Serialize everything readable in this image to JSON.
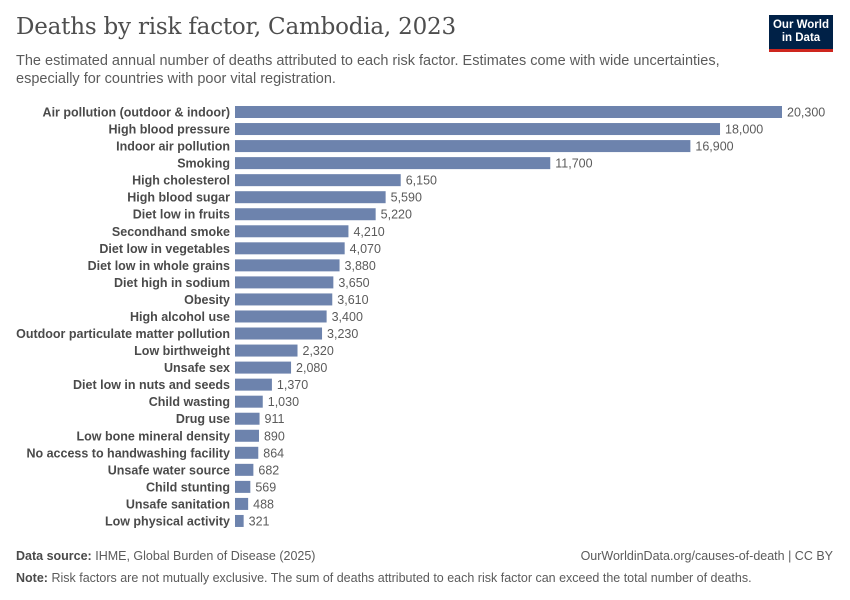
{
  "header": {
    "title": "Deaths by risk factor, Cambodia, 2023",
    "subtitle": "The estimated annual number of deaths attributed to each risk factor. Estimates come with wide uncertainties, especially for countries with poor vital registration."
  },
  "logo": {
    "line1": "Our World",
    "line2": "in Data"
  },
  "footer": {
    "source_label": "Data source:",
    "source_text": "IHME, Global Burden of Disease (2025)",
    "url_text": "OurWorldinData.org/causes-of-death | CC BY",
    "note_label": "Note:",
    "note_text": "Risk factors are not mutually exclusive. The sum of deaths attributed to each risk factor can exceed the total number of deaths."
  },
  "colors": {
    "bar": "#6d83ad",
    "logo_bg": "#002147",
    "logo_accent": "#ce261e"
  },
  "chart_data": {
    "type": "bar",
    "orientation": "horizontal",
    "title": "Deaths by risk factor, Cambodia, 2023",
    "xlabel": "",
    "ylabel": "",
    "xlim": [
      0,
      20300
    ],
    "categories": [
      "Air pollution (outdoor & indoor)",
      "High blood pressure",
      "Indoor air pollution",
      "Smoking",
      "High cholesterol",
      "High blood sugar",
      "Diet low in fruits",
      "Secondhand smoke",
      "Diet low in vegetables",
      "Diet low in whole grains",
      "Diet high in sodium",
      "Obesity",
      "High alcohol use",
      "Outdoor particulate matter pollution",
      "Low birthweight",
      "Unsafe sex",
      "Diet low in nuts and seeds",
      "Child wasting",
      "Drug use",
      "Low bone mineral density",
      "No access to handwashing facility",
      "Unsafe water source",
      "Child stunting",
      "Unsafe sanitation",
      "Low physical activity"
    ],
    "values": [
      20300,
      18000,
      16900,
      11700,
      6150,
      5590,
      5220,
      4210,
      4070,
      3880,
      3650,
      3610,
      3400,
      3230,
      2320,
      2080,
      1370,
      1030,
      911,
      890,
      864,
      682,
      569,
      488,
      321
    ],
    "value_labels": [
      "20,300",
      "18,000",
      "16,900",
      "11,700",
      "6,150",
      "5,590",
      "5,220",
      "4,210",
      "4,070",
      "3,880",
      "3,650",
      "3,610",
      "3,400",
      "3,230",
      "2,320",
      "2,080",
      "1,370",
      "1,030",
      "911",
      "890",
      "864",
      "682",
      "569",
      "488",
      "321"
    ]
  }
}
